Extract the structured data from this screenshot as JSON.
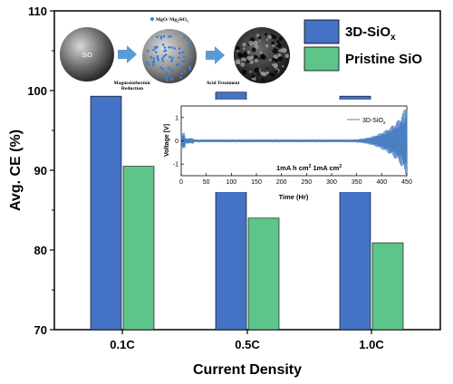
{
  "chart_data": {
    "type": "bar",
    "title": "",
    "xlabel": "Current Density",
    "ylabel": "Avg. CE (%)",
    "ylim": [
      70,
      110
    ],
    "yticks": [
      70,
      80,
      90,
      100,
      110
    ],
    "categories": [
      "0.1C",
      "0.5C",
      "1.0C"
    ],
    "series": [
      {
        "name": "3D-SiO",
        "name_sub": "x",
        "color": "#4472c4",
        "values": [
          99.3,
          99.8,
          99.3
        ]
      },
      {
        "name": "Pristine SiO",
        "color": "#5dc48a",
        "values": [
          90.5,
          84.0,
          80.9
        ]
      }
    ],
    "legend_position": "top-right",
    "schematic": {
      "sphere1_label": "SiO",
      "legend_label": "MgO/ Mg",
      "legend_label_sub1": "2",
      "legend_label_mid": "SiO",
      "legend_label_sub2": "x",
      "step1_line1": "Magnesiothermic",
      "step1_line2": "Reduction",
      "step2": "Acid Treatment"
    },
    "inset": {
      "type": "line",
      "xlabel": "Time (Hr)",
      "ylabel": "Voltage [V]",
      "xlim": [
        0,
        450
      ],
      "xticks": [
        0,
        50,
        100,
        150,
        200,
        250,
        300,
        350,
        400,
        450
      ],
      "ylim": [
        -1.5,
        1.5
      ],
      "yticks": [
        -1,
        0,
        1
      ],
      "ytick_labels": [
        "-1",
        "0",
        "1"
      ],
      "series_name": "3D-SiO",
      "series_name_sub": "x",
      "annotation_parts": [
        "1mA h cm",
        "2",
        " 1mA cm",
        "2"
      ],
      "color": "#4a7fc1"
    }
  }
}
